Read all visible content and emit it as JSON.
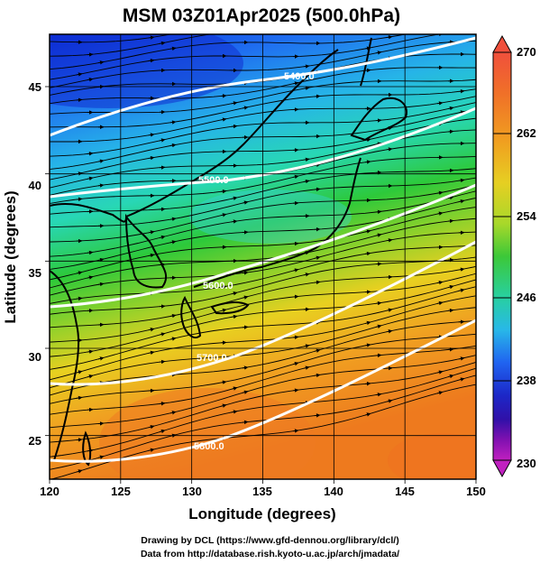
{
  "title": "MSM 03Z01Apr2025 (500.0hPa)",
  "map": {
    "lon_range": [
      120,
      150
    ],
    "lat_range": [
      22.5,
      48
    ],
    "x_ticks": [
      "120",
      "125",
      "130",
      "135",
      "140",
      "145",
      "150"
    ],
    "y_ticks": [
      "25",
      "30",
      "35",
      "40",
      "45"
    ],
    "xlabel": "Longitude (degrees)",
    "ylabel": "Latitude  (degrees)",
    "field_colors": [
      "#0a2ad8",
      "#1f6ef0",
      "#26b4e8",
      "#28d7b5",
      "#2dc93a",
      "#8ed12b",
      "#e8d020",
      "#f0a021",
      "#ee7a1e"
    ],
    "contour_labels": [
      "5400.0",
      "5500.0",
      "5600.0",
      "5700.0",
      "5800.0"
    ]
  },
  "colorbar": {
    "top_label": "270",
    "ticks": [
      "262",
      "254",
      "246",
      "238"
    ],
    "bottom_label": "230",
    "colors": [
      "#f0503c",
      "#f07028",
      "#f0a020",
      "#e6cf22",
      "#a8d82a",
      "#3cc838",
      "#28d0a0",
      "#28b8e8",
      "#2064f0",
      "#1c28c8",
      "#3010a8",
      "#8010b0",
      "#c020c0"
    ]
  },
  "credits": {
    "line1": "Drawing by DCL (https://www.gfd-dennou.org/library/dcl/)",
    "line2": "Data from http://database.rish.kyoto-u.ac.jp/arch/jmadata/"
  }
}
